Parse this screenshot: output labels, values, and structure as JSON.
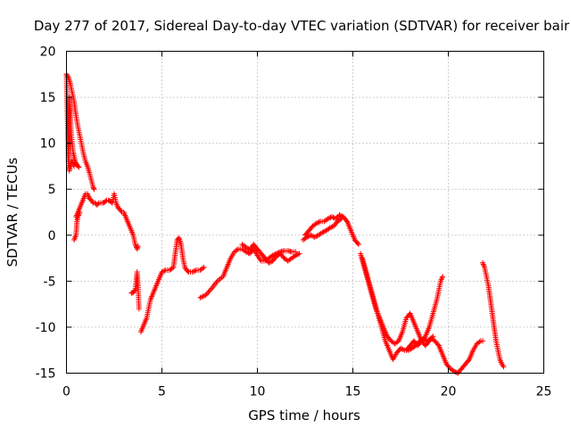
{
  "chart_data": {
    "type": "scatter",
    "title": "Day 277 of 2017, Sidereal Day-to-day VTEC variation (SDTVAR) for receiver bair",
    "xlabel": "GPS time / hours",
    "ylabel": "SDTVAR / TECUs",
    "xlim": [
      0,
      25
    ],
    "ylim": [
      -15,
      20
    ],
    "xticks": [
      0,
      5,
      10,
      15,
      20,
      25
    ],
    "yticks": [
      -15,
      -10,
      -5,
      0,
      5,
      10,
      15,
      20
    ],
    "xtick_labels": [
      "0",
      "5",
      "10",
      "15",
      "20",
      "25"
    ],
    "ytick_labels": [
      "-15",
      "-10",
      "-5",
      "0",
      "5",
      "10",
      "15",
      "20"
    ],
    "grid": true,
    "marker": "plus",
    "color": "#ff0000",
    "series": [
      {
        "x": [
          0.0,
          0.1,
          0.2,
          0.3,
          0.4,
          0.5,
          0.6,
          0.7,
          0.8,
          0.9,
          1.0,
          1.1,
          1.2,
          1.3,
          1.4,
          1.45
        ],
        "y": [
          17.5,
          17.2,
          16.5,
          15.5,
          14.5,
          13.0,
          11.8,
          10.8,
          9.8,
          8.8,
          8.0,
          7.5,
          6.8,
          6.0,
          5.2,
          5.0
        ]
      },
      {
        "x": [
          0.0,
          0.05,
          0.1,
          0.15,
          0.2,
          0.25,
          0.3,
          0.35,
          0.4
        ],
        "y": [
          17.5,
          13.0,
          9.0,
          7.0,
          7.5,
          8.0,
          8.0,
          7.8,
          7.5
        ]
      },
      {
        "x": [
          0.1,
          0.15,
          0.2,
          0.25,
          0.3,
          0.35,
          0.4,
          0.45,
          0.5,
          0.55,
          0.6,
          0.65
        ],
        "y": [
          8.0,
          15.0,
          13.0,
          11.0,
          10.0,
          9.0,
          8.5,
          8.0,
          7.8,
          7.6,
          7.5,
          7.4
        ]
      },
      {
        "x": [
          0.5,
          0.6,
          0.7,
          0.8,
          0.9,
          1.0,
          1.1,
          1.2,
          1.3,
          1.4,
          1.5,
          1.6,
          1.7,
          1.8,
          1.9,
          2.0,
          2.1,
          2.2,
          2.3,
          2.4,
          2.5,
          2.6,
          2.7,
          2.8,
          2.9,
          3.0,
          3.1,
          3.2,
          3.3,
          3.4,
          3.5,
          3.6,
          3.7,
          3.75
        ],
        "y": [
          2.0,
          2.5,
          3.0,
          3.5,
          4.0,
          4.5,
          4.5,
          4.0,
          3.8,
          3.5,
          3.5,
          3.3,
          3.5,
          3.5,
          3.5,
          3.6,
          3.8,
          3.8,
          3.7,
          3.5,
          4.5,
          3.5,
          3.0,
          2.8,
          2.5,
          2.5,
          2.0,
          1.5,
          1.0,
          0.5,
          0.0,
          -1.0,
          -1.5,
          -1.2
        ]
      },
      {
        "x": [
          0.4,
          0.5,
          0.55,
          0.6,
          0.7
        ],
        "y": [
          -0.5,
          0.0,
          1.5,
          2.0,
          2.5
        ]
      },
      {
        "x": [
          3.4,
          3.5,
          3.6,
          3.7,
          3.75,
          3.8
        ],
        "y": [
          -6.3,
          -6.2,
          -6.0,
          -4.0,
          -5.5,
          -8.0
        ]
      },
      {
        "x": [
          3.9,
          4.0,
          4.1,
          4.2,
          4.3,
          4.4,
          4.5,
          4.6,
          4.7,
          4.8,
          4.9,
          5.0,
          5.2,
          5.4,
          5.6,
          5.7,
          5.8,
          5.9,
          6.0,
          6.1,
          6.2,
          6.3,
          6.4,
          6.5,
          6.6,
          6.8,
          7.0,
          7.2
        ],
        "y": [
          -10.5,
          -10.0,
          -9.5,
          -9.0,
          -8.0,
          -7.0,
          -6.5,
          -6.0,
          -5.5,
          -5.0,
          -4.5,
          -4.0,
          -3.8,
          -3.8,
          -3.5,
          -2.0,
          -0.5,
          -0.3,
          -1.0,
          -2.5,
          -3.5,
          -3.8,
          -4.0,
          -4.0,
          -4.0,
          -3.8,
          -3.8,
          -3.5
        ]
      },
      {
        "x": [
          7.0,
          7.3,
          7.6,
          7.9,
          8.2,
          8.4,
          8.6,
          8.8,
          9.0,
          9.2,
          9.4,
          9.6,
          9.8,
          10.0,
          10.2,
          10.4,
          10.6,
          10.8,
          11.0,
          11.2,
          11.4,
          11.6,
          11.8,
          12.0
        ],
        "y": [
          -6.8,
          -6.5,
          -5.8,
          -5.0,
          -4.5,
          -3.5,
          -2.5,
          -1.8,
          -1.5,
          -1.5,
          -1.8,
          -2.0,
          -1.5,
          -2.2,
          -2.8,
          -2.8,
          -2.5,
          -2.2,
          -2.0,
          -1.8,
          -1.7,
          -1.7,
          -1.8,
          -1.8
        ]
      },
      {
        "x": [
          9.2,
          9.4,
          9.6,
          9.8,
          10.0,
          10.2,
          10.4,
          10.6,
          10.8,
          11.0,
          11.2,
          11.4,
          11.6,
          11.8,
          12.0,
          12.2
        ],
        "y": [
          -1.0,
          -1.3,
          -1.6,
          -1.0,
          -1.5,
          -2.0,
          -2.5,
          -3.0,
          -2.8,
          -2.3,
          -2.0,
          -2.5,
          -2.8,
          -2.5,
          -2.2,
          -2.0
        ]
      },
      {
        "x": [
          12.5,
          12.7,
          12.9,
          13.1,
          13.3,
          13.5,
          13.7,
          13.9,
          14.1,
          14.3,
          14.5,
          14.7,
          14.9,
          15.1,
          15.3
        ],
        "y": [
          0.0,
          0.5,
          1.0,
          1.3,
          1.5,
          1.5,
          1.8,
          2.0,
          1.8,
          2.2,
          2.0,
          1.5,
          0.5,
          -0.5,
          -1.0
        ]
      },
      {
        "x": [
          12.4,
          12.6,
          12.8,
          13.0,
          13.2,
          13.4,
          13.6,
          13.8,
          14.0,
          14.2,
          14.4
        ],
        "y": [
          -0.5,
          -0.2,
          0.0,
          -0.2,
          0.0,
          0.3,
          0.5,
          0.8,
          1.0,
          1.5,
          1.8
        ]
      },
      {
        "x": [
          15.4,
          15.6,
          15.8,
          16.0,
          16.2,
          16.4,
          16.6,
          16.8,
          17.0,
          17.2,
          17.4,
          17.6,
          17.8,
          18.0,
          18.2,
          18.4,
          18.6,
          18.8,
          19.0,
          19.2
        ],
        "y": [
          -2.0,
          -3.5,
          -5.0,
          -6.5,
          -8.0,
          -9.0,
          -10.0,
          -11.0,
          -11.5,
          -11.8,
          -11.5,
          -10.5,
          -9.0,
          -8.5,
          -9.5,
          -10.5,
          -11.5,
          -12.0,
          -11.5,
          -11.0
        ]
      },
      {
        "x": [
          15.5,
          15.7,
          15.9,
          16.1,
          16.3,
          16.5,
          16.7,
          16.9,
          17.1,
          17.3,
          17.5,
          17.7,
          17.9,
          18.1,
          18.3,
          18.5,
          18.7,
          18.9,
          19.1,
          19.3,
          19.5,
          19.7,
          19.9,
          20.1,
          20.3,
          20.5,
          20.7,
          20.9,
          21.1,
          21.3,
          21.5,
          21.7,
          21.8
        ],
        "y": [
          -2.5,
          -4.0,
          -5.5,
          -7.0,
          -8.5,
          -10.0,
          -11.5,
          -12.5,
          -13.5,
          -12.8,
          -12.3,
          -12.5,
          -12.5,
          -12.3,
          -12.0,
          -11.5,
          -11.3,
          -11.5,
          -11.2,
          -11.5,
          -12.0,
          -13.0,
          -14.0,
          -14.5,
          -14.8,
          -15.0,
          -14.5,
          -14.0,
          -13.5,
          -12.5,
          -11.8,
          -11.5,
          -11.5
        ]
      },
      {
        "x": [
          17.8,
          18.0,
          18.2,
          18.4,
          18.6,
          18.8,
          19.0,
          19.2,
          19.4,
          19.5,
          19.6,
          19.7
        ],
        "y": [
          -12.5,
          -12.0,
          -11.5,
          -12.0,
          -11.5,
          -11.0,
          -10.0,
          -8.5,
          -7.0,
          -6.0,
          -5.0,
          -4.5
        ]
      },
      {
        "x": [
          21.8,
          21.9,
          22.0,
          22.1,
          22.2,
          22.3,
          22.4,
          22.5,
          22.6,
          22.7,
          22.8,
          22.9
        ],
        "y": [
          -3.0,
          -3.5,
          -4.5,
          -5.5,
          -7.0,
          -8.5,
          -10.0,
          -11.5,
          -12.5,
          -13.5,
          -14.0,
          -14.3
        ]
      }
    ]
  }
}
